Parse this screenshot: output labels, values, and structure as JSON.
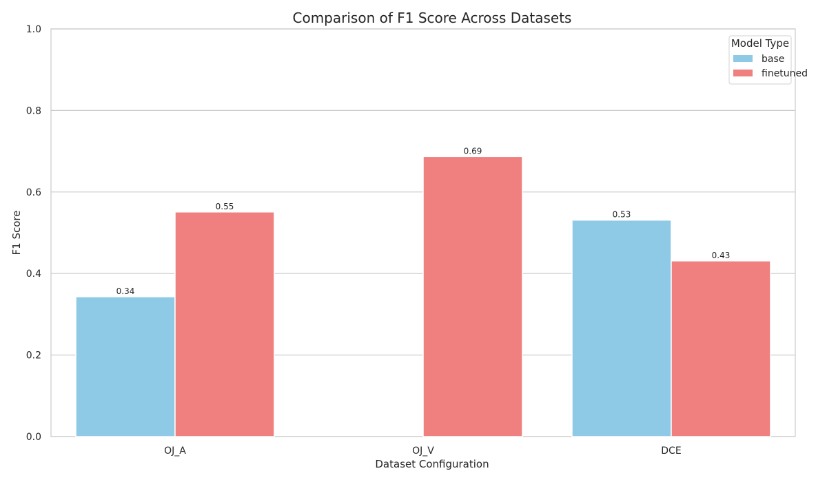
{
  "chart_data": {
    "type": "bar",
    "title": "Comparison of F1 Score Across Datasets",
    "xlabel": "Dataset Configuration",
    "ylabel": "F1 Score",
    "ylim": [
      0,
      1.0
    ],
    "yticks": [
      "0.0",
      "0.2",
      "0.4",
      "0.6",
      "0.8",
      "1.0"
    ],
    "grid": true,
    "legend": {
      "title": "Model Type",
      "placement": "top-right"
    },
    "categories": [
      "OJ_A",
      "OJ_V",
      "DCE"
    ],
    "series": [
      {
        "name": "base",
        "color": "#8ecae6",
        "values": [
          0.343,
          null,
          0.531
        ],
        "labels": [
          "0.34",
          "",
          "0.53"
        ]
      },
      {
        "name": "finetuned",
        "color": "#f08080",
        "values": [
          0.551,
          0.687,
          0.431
        ],
        "labels": [
          "0.55",
          "0.69",
          "0.43"
        ]
      }
    ]
  }
}
